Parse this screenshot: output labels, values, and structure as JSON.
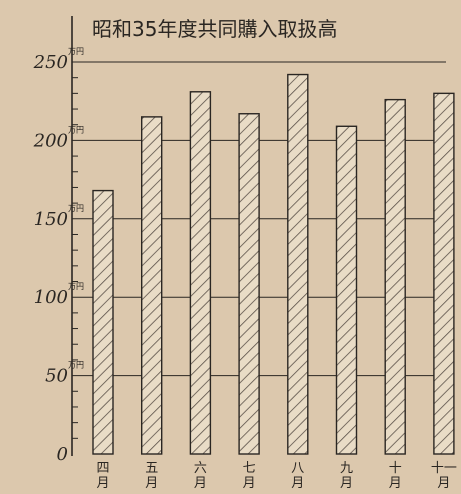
{
  "chart_data": {
    "type": "bar",
    "title": "昭和35年度共同購入取扱高",
    "categories": [
      "四月",
      "五月",
      "六月",
      "七月",
      "八月",
      "九月",
      "十月",
      "十一月"
    ],
    "category_glyphs": [
      [
        "四",
        "月"
      ],
      [
        "五",
        "月"
      ],
      [
        "六",
        "月"
      ],
      [
        "七",
        "月"
      ],
      [
        "八",
        "月"
      ],
      [
        "九",
        "月"
      ],
      [
        "十",
        "月"
      ],
      [
        "十一",
        "月"
      ]
    ],
    "values": [
      168,
      215,
      231,
      217,
      242,
      209,
      226,
      230
    ],
    "ylim": [
      0,
      250
    ],
    "yticks": [
      {
        "value": 0,
        "label": "0",
        "unit": ""
      },
      {
        "value": 50,
        "label": "50",
        "unit": "万円"
      },
      {
        "value": 100,
        "label": "100",
        "unit": "万円"
      },
      {
        "value": 150,
        "label": "150",
        "unit": "万円"
      },
      {
        "value": 200,
        "label": "200",
        "unit": "万円"
      },
      {
        "value": 250,
        "label": "250",
        "unit": "万円"
      }
    ],
    "grid": true,
    "colors": {
      "paper": "#dcc8ad",
      "ink": "#2a2622",
      "bar_fill": "#e9dcc6",
      "hatch": "#5a5048"
    }
  }
}
